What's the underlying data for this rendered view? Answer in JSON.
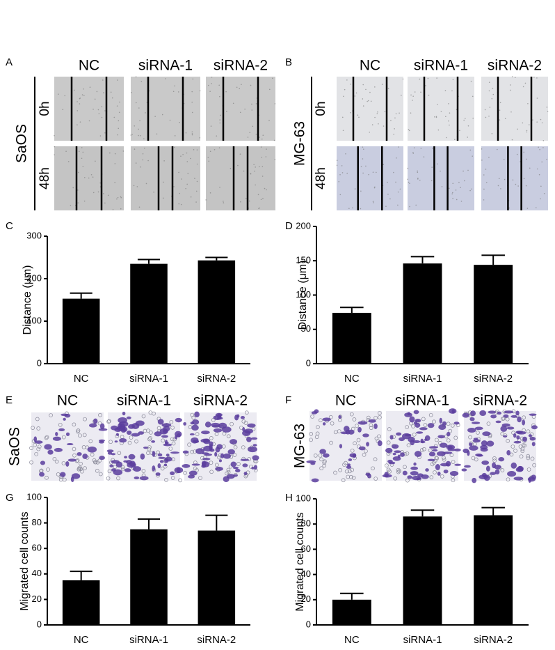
{
  "image_panels": [
    {
      "label": "A",
      "cell_line": "SaOS",
      "columns": [
        "NC",
        "siRNA-1",
        "siRNA-2"
      ],
      "rows": [
        "0h",
        "48h"
      ]
    },
    {
      "label": "B",
      "cell_line": "MG-63",
      "columns": [
        "NC",
        "siRNA-1",
        "siRNA-2"
      ],
      "rows": [
        "0h",
        "48h"
      ]
    },
    {
      "label": "E",
      "cell_line": "SaOS",
      "columns": [
        "NC",
        "siRNA-1",
        "siRNA-2"
      ]
    },
    {
      "label": "F",
      "cell_line": "MG-63",
      "columns": [
        "NC",
        "siRNA-1",
        "siRNA-2"
      ]
    }
  ],
  "chart_data": [
    {
      "type": "bar",
      "label": "C",
      "y_label": "Distance (μm)",
      "categories": [
        "NC",
        "siRNA-1",
        "siRNA-2"
      ],
      "values": [
        153,
        235,
        243
      ],
      "errors": [
        13,
        10,
        7
      ],
      "color": "#000000",
      "ylim": [
        0,
        300
      ],
      "yticks": [
        0,
        100,
        200,
        300
      ]
    },
    {
      "type": "bar",
      "label": "D",
      "y_label": "Distance (μm)",
      "categories": [
        "NC",
        "siRNA-1",
        "siRNA-2"
      ],
      "values": [
        74,
        146,
        144
      ],
      "errors": [
        8,
        10,
        14
      ],
      "color": "#000000",
      "ylim": [
        0,
        200
      ],
      "yticks": [
        0,
        50,
        100,
        150,
        200
      ]
    },
    {
      "type": "bar",
      "label": "G",
      "y_label": "Migrated cell counts",
      "categories": [
        "NC",
        "siRNA-1",
        "siRNA-2"
      ],
      "values": [
        35,
        75,
        74
      ],
      "errors": [
        7,
        8,
        12
      ],
      "color": "#000000",
      "ylim": [
        0,
        100
      ],
      "yticks": [
        0,
        20,
        40,
        60,
        80,
        100
      ]
    },
    {
      "type": "bar",
      "label": "H",
      "y_label": "Migrated cell counts",
      "categories": [
        "NC",
        "siRNA-1",
        "siRNA-2"
      ],
      "values": [
        20,
        86,
        87
      ],
      "errors": [
        5,
        5,
        6
      ],
      "color": "#000000",
      "ylim": [
        0,
        100
      ],
      "yticks": [
        0,
        20,
        40,
        60,
        80,
        100
      ]
    }
  ]
}
